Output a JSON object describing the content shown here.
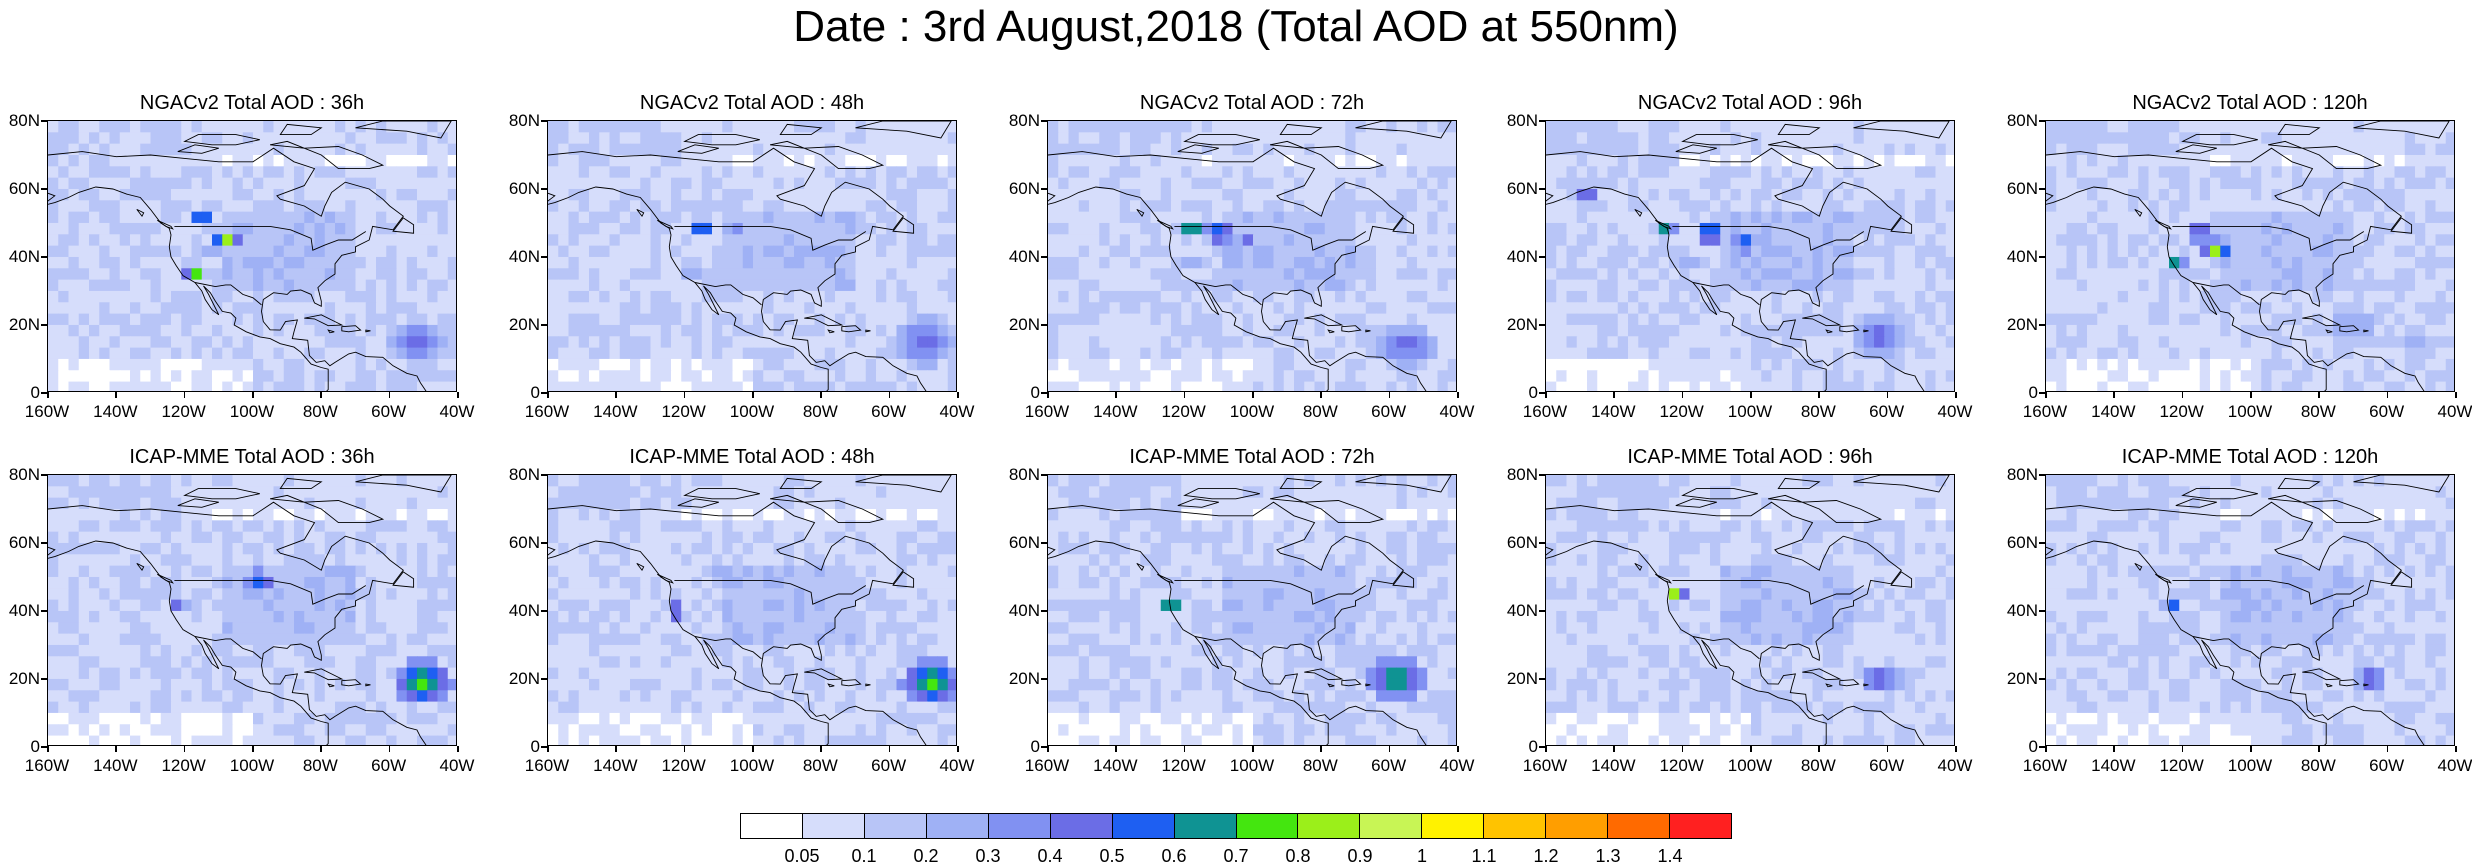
{
  "title": "Date : 3rd August,2018 (Total AOD at 550nm)",
  "panels": [
    {
      "title": "NGACv2 Total AOD : 36h",
      "row": 0,
      "col": 0,
      "variant": 0
    },
    {
      "title": "NGACv2 Total AOD : 48h",
      "row": 0,
      "col": 1,
      "variant": 1
    },
    {
      "title": "NGACv2 Total AOD : 72h",
      "row": 0,
      "col": 2,
      "variant": 2
    },
    {
      "title": "NGACv2 Total AOD : 96h",
      "row": 0,
      "col": 3,
      "variant": 3
    },
    {
      "title": "NGACv2 Total AOD : 120h",
      "row": 0,
      "col": 4,
      "variant": 4
    },
    {
      "title": "ICAP-MME Total AOD : 36h",
      "row": 1,
      "col": 0,
      "variant": 5
    },
    {
      "title": "ICAP-MME Total AOD : 48h",
      "row": 1,
      "col": 1,
      "variant": 6
    },
    {
      "title": "ICAP-MME Total AOD : 72h",
      "row": 1,
      "col": 2,
      "variant": 7
    },
    {
      "title": "ICAP-MME Total AOD : 96h",
      "row": 1,
      "col": 3,
      "variant": 8
    },
    {
      "title": "ICAP-MME Total AOD : 120h",
      "row": 1,
      "col": 4,
      "variant": 9
    }
  ],
  "axes": {
    "lat_labels": [
      "80N",
      "60N",
      "40N",
      "20N",
      "0"
    ],
    "lon_labels": [
      "160W",
      "140W",
      "120W",
      "100W",
      "80W",
      "60W",
      "40W"
    ],
    "lat_range": [
      0,
      80
    ],
    "lon_range": [
      -160,
      -40
    ]
  },
  "colorbar": {
    "labels": [
      "0.05",
      "0.1",
      "0.2",
      "0.3",
      "0.4",
      "0.5",
      "0.6",
      "0.7",
      "0.8",
      "0.9",
      "1",
      "1.1",
      "1.2",
      "1.3",
      "1.4"
    ],
    "colors": [
      "#ffffff",
      "#d6ddfb",
      "#b8c5f7",
      "#9fb1f5",
      "#8191f2",
      "#6b6de6",
      "#1e5ff2",
      "#0f9393",
      "#44e60f",
      "#9bef1a",
      "#c8f555",
      "#fff200",
      "#ffc300",
      "#ff9e00",
      "#ff6a00",
      "#ff2020"
    ]
  }
}
